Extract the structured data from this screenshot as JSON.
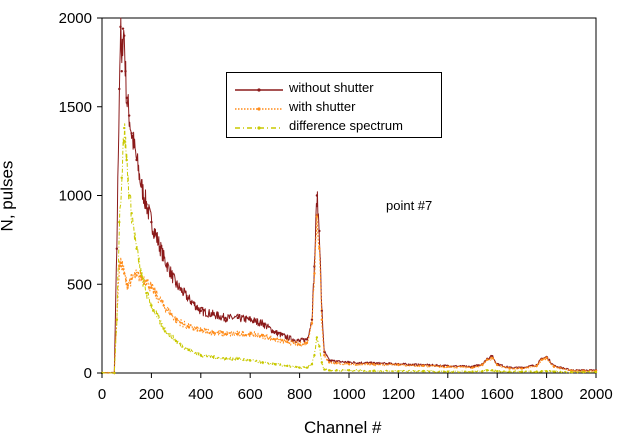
{
  "chart_data": {
    "type": "line",
    "title": "",
    "xlabel": "Channel #",
    "ylabel": "N, pulses",
    "xlim": [
      0,
      2000
    ],
    "ylim": [
      0,
      2000
    ],
    "xticks": [
      0,
      200,
      400,
      600,
      800,
      1000,
      1200,
      1400,
      1600,
      1800,
      2000
    ],
    "yticks": [
      0,
      500,
      1000,
      1500,
      2000
    ],
    "grid": false,
    "legend_position": "top-center",
    "annotation": "point #7",
    "series": [
      {
        "name": "without shutter",
        "color": "#8b1a1a",
        "style": "solid-with-dots",
        "x": [
          0,
          50,
          60,
          70,
          75,
          80,
          85,
          90,
          95,
          100,
          110,
          120,
          140,
          160,
          180,
          200,
          250,
          300,
          350,
          400,
          450,
          500,
          550,
          600,
          650,
          700,
          750,
          800,
          830,
          850,
          860,
          870,
          880,
          890,
          900,
          920,
          950,
          1000,
          1100,
          1200,
          1300,
          1400,
          1500,
          1540,
          1560,
          1580,
          1600,
          1650,
          1700,
          1760,
          1780,
          1800,
          1830,
          1900,
          1950,
          2000
        ],
        "y": [
          0,
          0,
          700,
          1600,
          1950,
          1700,
          1940,
          1900,
          1700,
          1550,
          1450,
          1350,
          1200,
          1050,
          950,
          850,
          650,
          500,
          420,
          350,
          330,
          310,
          310,
          300,
          280,
          230,
          200,
          180,
          190,
          300,
          600,
          1000,
          800,
          350,
          120,
          70,
          65,
          60,
          55,
          50,
          45,
          40,
          35,
          50,
          80,
          95,
          50,
          30,
          30,
          45,
          80,
          90,
          40,
          15,
          15,
          15
        ]
      },
      {
        "name": "with shutter",
        "color": "#ff8c1a",
        "style": "dotted",
        "x": [
          0,
          50,
          60,
          70,
          80,
          90,
          100,
          120,
          140,
          160,
          180,
          200,
          250,
          300,
          350,
          400,
          450,
          500,
          550,
          600,
          650,
          700,
          750,
          800,
          830,
          850,
          860,
          870,
          880,
          890,
          900,
          920,
          950,
          1000,
          1100,
          1200,
          1300,
          1400,
          1500,
          1540,
          1560,
          1580,
          1600,
          1650,
          1700,
          1760,
          1780,
          1800,
          1830,
          1900,
          1950,
          2000
        ],
        "y": [
          0,
          0,
          300,
          600,
          620,
          560,
          500,
          530,
          550,
          540,
          520,
          480,
          380,
          300,
          260,
          240,
          230,
          220,
          220,
          220,
          210,
          190,
          175,
          160,
          170,
          280,
          560,
          880,
          700,
          300,
          100,
          60,
          55,
          50,
          48,
          45,
          40,
          35,
          30,
          45,
          75,
          85,
          45,
          25,
          25,
          40,
          75,
          85,
          35,
          12,
          12,
          12
        ]
      },
      {
        "name": "difference spectrum",
        "color": "#c8c800",
        "style": "dash-dot",
        "x": [
          0,
          50,
          60,
          70,
          80,
          90,
          100,
          110,
          120,
          140,
          160,
          180,
          200,
          250,
          300,
          350,
          400,
          450,
          500,
          550,
          600,
          650,
          700,
          750,
          800,
          830,
          850,
          860,
          870,
          880,
          890,
          900,
          920,
          950,
          1000,
          1100,
          1200,
          1300,
          1400,
          1500,
          1540,
          1560,
          1580,
          1600,
          1650,
          1700,
          1760,
          1780,
          1800,
          1830,
          1900,
          1950,
          2000
        ],
        "y": [
          0,
          0,
          300,
          850,
          1100,
          1380,
          1200,
          1000,
          900,
          700,
          550,
          450,
          380,
          250,
          180,
          130,
          100,
          90,
          80,
          80,
          70,
          60,
          50,
          40,
          30,
          30,
          50,
          100,
          200,
          150,
          60,
          20,
          15,
          15,
          15,
          12,
          10,
          10,
          8,
          8,
          10,
          15,
          15,
          10,
          8,
          8,
          8,
          10,
          10,
          8,
          5,
          5,
          5
        ]
      }
    ]
  }
}
